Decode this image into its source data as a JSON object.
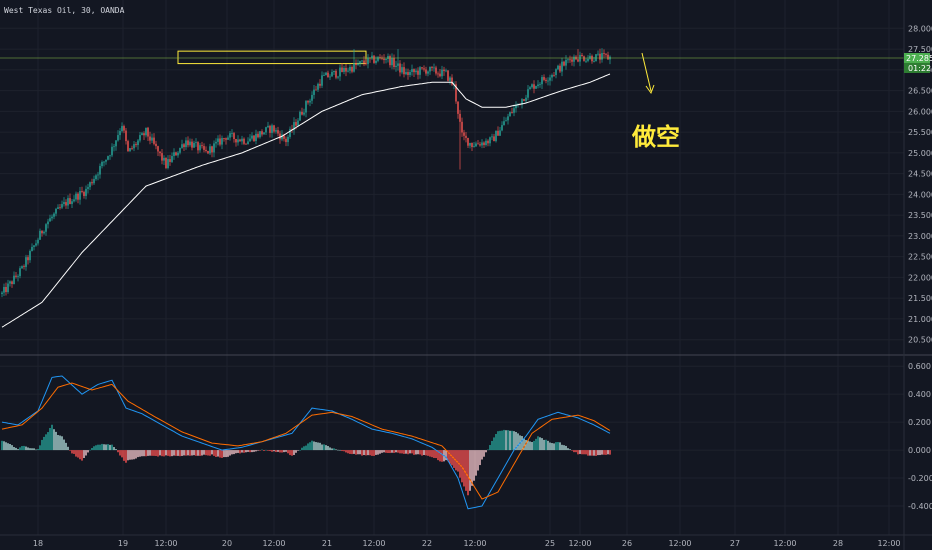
{
  "chart_data": [
    {
      "type": "candlestick",
      "title": "West Texas Oil, 30, OANDA",
      "x_tick_labels": [
        "18",
        "19",
        "12:00",
        "20",
        "12:00",
        "21",
        "12:00",
        "22",
        "12:00",
        "25",
        "12:00",
        "26",
        "12:00",
        "27",
        "12:00",
        "28",
        "12:00"
      ],
      "y_tick_labels": [
        "28.000",
        "27.500",
        "27.000",
        "26.500",
        "26.000",
        "25.500",
        "25.000",
        "24.500",
        "24.000",
        "23.500",
        "23.000",
        "22.500",
        "22.000",
        "21.500",
        "21.000",
        "20.500"
      ],
      "ylim": [
        20.3,
        28.2
      ],
      "last_price": "27.285",
      "countdown": "01:22",
      "price_series": {
        "anchors": [
          [
            0,
            21.6
          ],
          [
            10,
            22.2
          ],
          [
            22,
            23.3
          ],
          [
            32,
            23.8
          ],
          [
            42,
            24.1
          ],
          [
            55,
            25.1
          ],
          [
            60,
            25.7
          ],
          [
            63,
            25.0
          ],
          [
            72,
            25.5
          ],
          [
            82,
            24.7
          ],
          [
            92,
            25.3
          ],
          [
            102,
            25.0
          ],
          [
            112,
            25.4
          ],
          [
            122,
            25.3
          ],
          [
            135,
            25.6
          ],
          [
            142,
            25.3
          ],
          [
            150,
            26.0
          ],
          [
            160,
            26.8
          ],
          [
            172,
            27.0
          ],
          [
            182,
            27.2
          ],
          [
            192,
            27.3
          ],
          [
            202,
            26.9
          ],
          [
            212,
            27.0
          ],
          [
            222,
            26.9
          ],
          [
            226,
            26.6
          ],
          [
            230,
            25.4
          ],
          [
            235,
            25.2
          ],
          [
            245,
            25.3
          ],
          [
            255,
            26.0
          ],
          [
            265,
            26.6
          ],
          [
            275,
            26.9
          ],
          [
            285,
            27.3
          ],
          [
            298,
            27.3
          ],
          [
            304,
            27.3
          ]
        ],
        "spikes": [
          [
            176,
            27.5
          ],
          [
            198,
            27.5
          ],
          [
            229,
            24.6
          ],
          [
            288,
            27.5
          ]
        ]
      },
      "moving_average": {
        "anchors": [
          [
            0,
            20.8
          ],
          [
            20,
            21.4
          ],
          [
            40,
            22.6
          ],
          [
            60,
            23.6
          ],
          [
            72,
            24.2
          ],
          [
            100,
            24.7
          ],
          [
            120,
            25.0
          ],
          [
            140,
            25.4
          ],
          [
            160,
            26.0
          ],
          [
            180,
            26.4
          ],
          [
            200,
            26.6
          ],
          [
            215,
            26.7
          ],
          [
            225,
            26.7
          ],
          [
            232,
            26.3
          ],
          [
            240,
            26.1
          ],
          [
            252,
            26.1
          ],
          [
            262,
            26.2
          ],
          [
            280,
            26.5
          ],
          [
            294,
            26.7
          ],
          [
            304,
            26.9
          ]
        ]
      },
      "resistance_zone": {
        "low": 27.15,
        "high": 27.45,
        "x_start": 178,
        "x_end": 366
      },
      "price_line": 27.285,
      "annotation_text": "做空",
      "colors": {
        "up": "#26a69a",
        "down": "#ef5350",
        "ma": "#ffffff",
        "zone": "#ffeb3b",
        "price_badge": "#4caf50",
        "price_line": "#8bc34a"
      }
    },
    {
      "type": "macd",
      "y_tick_labels": [
        "0.600",
        "0.400",
        "0.200",
        "0.000",
        "-0.200",
        "-0.400"
      ],
      "ylim": [
        -0.5,
        0.63
      ],
      "macd_line": {
        "anchors": [
          [
            0,
            0.2
          ],
          [
            8,
            0.18
          ],
          [
            18,
            0.28
          ],
          [
            25,
            0.52
          ],
          [
            30,
            0.53
          ],
          [
            40,
            0.4
          ],
          [
            48,
            0.47
          ],
          [
            55,
            0.5
          ],
          [
            62,
            0.3
          ],
          [
            70,
            0.26
          ],
          [
            80,
            0.18
          ],
          [
            90,
            0.1
          ],
          [
            100,
            0.05
          ],
          [
            110,
            0.0
          ],
          [
            120,
            0.02
          ],
          [
            135,
            0.08
          ],
          [
            145,
            0.12
          ],
          [
            155,
            0.3
          ],
          [
            165,
            0.28
          ],
          [
            175,
            0.22
          ],
          [
            185,
            0.15
          ],
          [
            195,
            0.12
          ],
          [
            205,
            0.08
          ],
          [
            215,
            0.02
          ],
          [
            222,
            -0.05
          ],
          [
            228,
            -0.2
          ],
          [
            233,
            -0.42
          ],
          [
            240,
            -0.4
          ],
          [
            248,
            -0.2
          ],
          [
            256,
            0.0
          ],
          [
            262,
            0.1
          ],
          [
            268,
            0.22
          ],
          [
            278,
            0.27
          ],
          [
            288,
            0.23
          ],
          [
            296,
            0.18
          ],
          [
            304,
            0.12
          ]
        ]
      },
      "signal_line": {
        "anchors": [
          [
            0,
            0.15
          ],
          [
            10,
            0.18
          ],
          [
            20,
            0.3
          ],
          [
            28,
            0.45
          ],
          [
            35,
            0.48
          ],
          [
            45,
            0.43
          ],
          [
            55,
            0.47
          ],
          [
            63,
            0.35
          ],
          [
            75,
            0.25
          ],
          [
            90,
            0.13
          ],
          [
            105,
            0.05
          ],
          [
            118,
            0.03
          ],
          [
            130,
            0.06
          ],
          [
            142,
            0.12
          ],
          [
            155,
            0.25
          ],
          [
            165,
            0.27
          ],
          [
            175,
            0.24
          ],
          [
            190,
            0.15
          ],
          [
            205,
            0.1
          ],
          [
            220,
            0.03
          ],
          [
            230,
            -0.12
          ],
          [
            240,
            -0.35
          ],
          [
            248,
            -0.3
          ],
          [
            256,
            -0.1
          ],
          [
            265,
            0.12
          ],
          [
            275,
            0.22
          ],
          [
            288,
            0.25
          ],
          [
            296,
            0.21
          ],
          [
            304,
            0.14
          ]
        ]
      },
      "colors": {
        "macd": "#2196f3",
        "signal": "#ff6d00",
        "hist_up_strong": "#26a69a",
        "hist_up_weak": "#b2dfdb",
        "hist_down_strong": "#ff5252",
        "hist_down_weak": "#ffcdd2"
      }
    }
  ]
}
